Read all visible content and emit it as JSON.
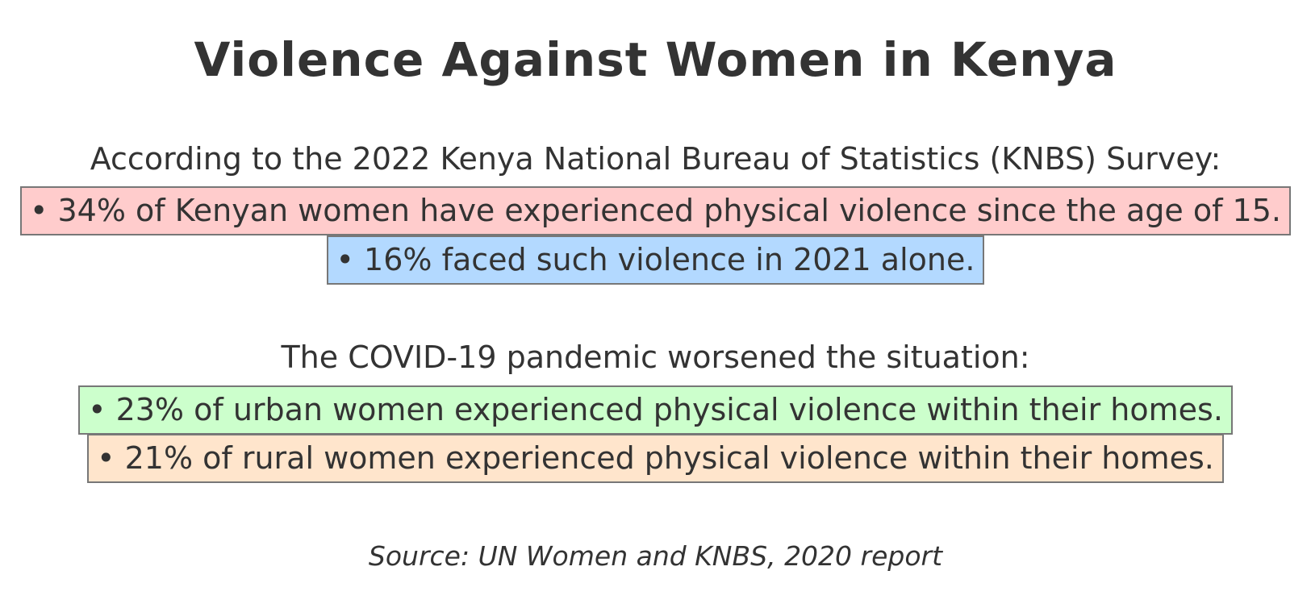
{
  "title": "Violence Against Women in Kenya",
  "section1": {
    "heading": "According to the 2022 Kenya National Bureau of Statistics (KNBS) Survey:",
    "items": [
      {
        "text": "• 34% of Kenyan women have experienced physical violence since the age of 15.",
        "color": "#ffcccc"
      },
      {
        "text": "• 16% faced such violence in 2021 alone.",
        "color": "#b3d9ff"
      }
    ]
  },
  "section2": {
    "heading": "The COVID-19 pandemic worsened the situation:",
    "items": [
      {
        "text": "• 23% of urban women experienced physical violence within their homes.",
        "color": "#ccffcc"
      },
      {
        "text": "• 21% of rural women experienced physical violence within their homes.",
        "color": "#ffe5cc"
      }
    ]
  },
  "source": "Source: UN Women and KNBS, 2020 report"
}
